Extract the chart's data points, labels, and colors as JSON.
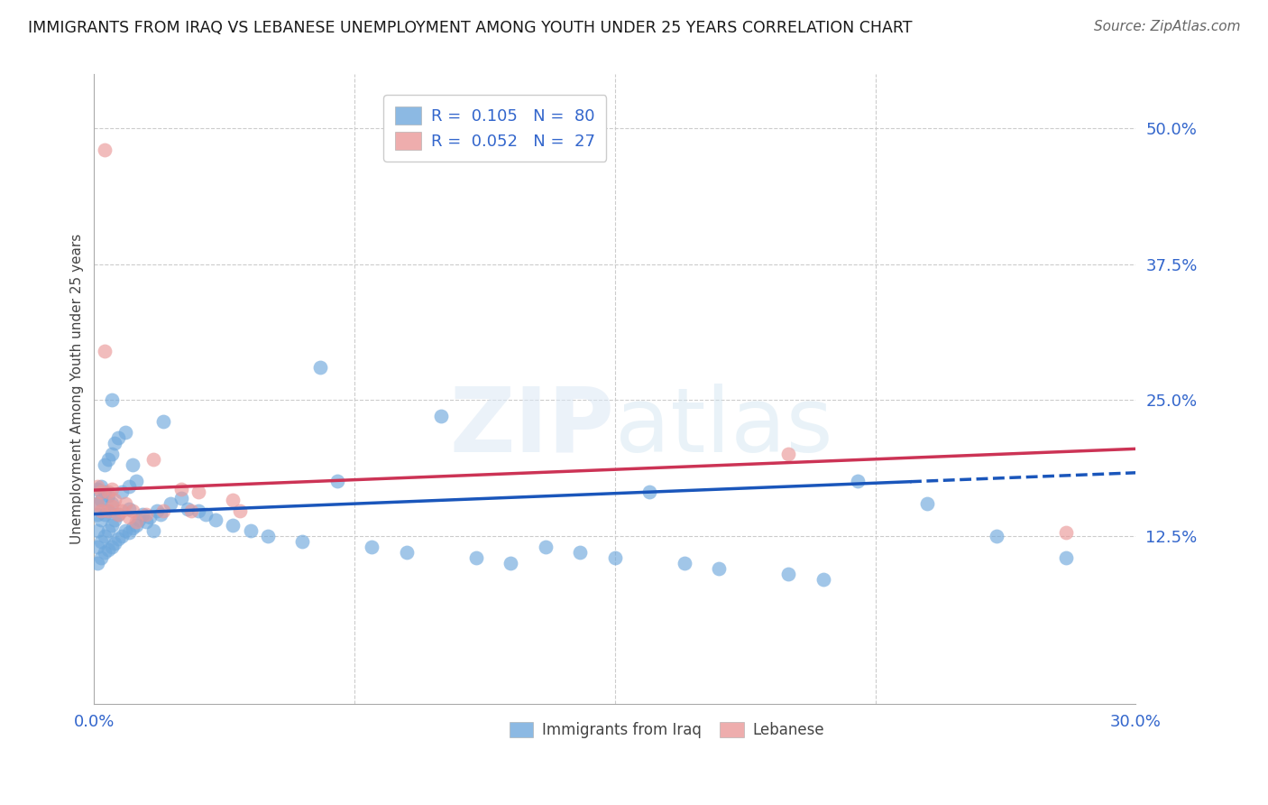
{
  "title": "IMMIGRANTS FROM IRAQ VS LEBANESE UNEMPLOYMENT AMONG YOUTH UNDER 25 YEARS CORRELATION CHART",
  "source": "Source: ZipAtlas.com",
  "ylabel": "Unemployment Among Youth under 25 years",
  "xlim": [
    0.0,
    0.3
  ],
  "ylim": [
    -0.03,
    0.55
  ],
  "yticks": [
    0.0,
    0.125,
    0.25,
    0.375,
    0.5
  ],
  "ytick_labels": [
    "",
    "12.5%",
    "25.0%",
    "37.5%",
    "50.0%"
  ],
  "xticks": [
    0.0,
    0.075,
    0.15,
    0.225,
    0.3
  ],
  "xtick_labels": [
    "0.0%",
    "",
    "",
    "",
    "30.0%"
  ],
  "blue_R": 0.105,
  "blue_N": 80,
  "pink_R": 0.052,
  "pink_N": 27,
  "blue_color": "#6fa8dc",
  "pink_color": "#ea9999",
  "trend_blue_color": "#1a56bb",
  "trend_pink_color": "#cc3355",
  "legend_label_blue": "Immigrants from Iraq",
  "legend_label_pink": "Lebanese",
  "accent_color": "#3366cc",
  "background_color": "#ffffff",
  "grid_color": "#cccccc",
  "blue_points_x": [
    0.001,
    0.001,
    0.001,
    0.001,
    0.001,
    0.001,
    0.002,
    0.002,
    0.002,
    0.002,
    0.002,
    0.003,
    0.003,
    0.003,
    0.003,
    0.003,
    0.004,
    0.004,
    0.004,
    0.004,
    0.004,
    0.005,
    0.005,
    0.005,
    0.005,
    0.006,
    0.006,
    0.006,
    0.007,
    0.007,
    0.007,
    0.008,
    0.008,
    0.009,
    0.009,
    0.01,
    0.01,
    0.01,
    0.011,
    0.011,
    0.012,
    0.012,
    0.013,
    0.014,
    0.015,
    0.016,
    0.017,
    0.018,
    0.019,
    0.02,
    0.022,
    0.025,
    0.027,
    0.03,
    0.032,
    0.035,
    0.04,
    0.045,
    0.05,
    0.06,
    0.065,
    0.07,
    0.08,
    0.09,
    0.1,
    0.11,
    0.12,
    0.13,
    0.14,
    0.15,
    0.16,
    0.17,
    0.18,
    0.2,
    0.21,
    0.22,
    0.24,
    0.26,
    0.28,
    0.005
  ],
  "blue_points_y": [
    0.1,
    0.115,
    0.13,
    0.145,
    0.155,
    0.168,
    0.105,
    0.12,
    0.14,
    0.158,
    0.17,
    0.11,
    0.125,
    0.145,
    0.165,
    0.19,
    0.112,
    0.13,
    0.148,
    0.162,
    0.195,
    0.115,
    0.135,
    0.155,
    0.2,
    0.118,
    0.14,
    0.21,
    0.122,
    0.145,
    0.215,
    0.125,
    0.165,
    0.13,
    0.22,
    0.128,
    0.15,
    0.17,
    0.132,
    0.19,
    0.135,
    0.175,
    0.14,
    0.145,
    0.138,
    0.142,
    0.13,
    0.148,
    0.145,
    0.23,
    0.155,
    0.16,
    0.15,
    0.148,
    0.145,
    0.14,
    0.135,
    0.13,
    0.125,
    0.12,
    0.28,
    0.175,
    0.115,
    0.11,
    0.235,
    0.105,
    0.1,
    0.115,
    0.11,
    0.105,
    0.165,
    0.1,
    0.095,
    0.09,
    0.085,
    0.175,
    0.155,
    0.125,
    0.105,
    0.25
  ],
  "pink_points_x": [
    0.001,
    0.001,
    0.002,
    0.002,
    0.003,
    0.003,
    0.004,
    0.004,
    0.005,
    0.005,
    0.006,
    0.007,
    0.008,
    0.009,
    0.01,
    0.011,
    0.012,
    0.015,
    0.017,
    0.02,
    0.025,
    0.028,
    0.03,
    0.04,
    0.042,
    0.2,
    0.28
  ],
  "pink_points_y": [
    0.155,
    0.17,
    0.148,
    0.165,
    0.48,
    0.295,
    0.148,
    0.165,
    0.152,
    0.168,
    0.158,
    0.145,
    0.148,
    0.155,
    0.142,
    0.148,
    0.138,
    0.145,
    0.195,
    0.148,
    0.168,
    0.148,
    0.165,
    0.158,
    0.148,
    0.2,
    0.128
  ]
}
